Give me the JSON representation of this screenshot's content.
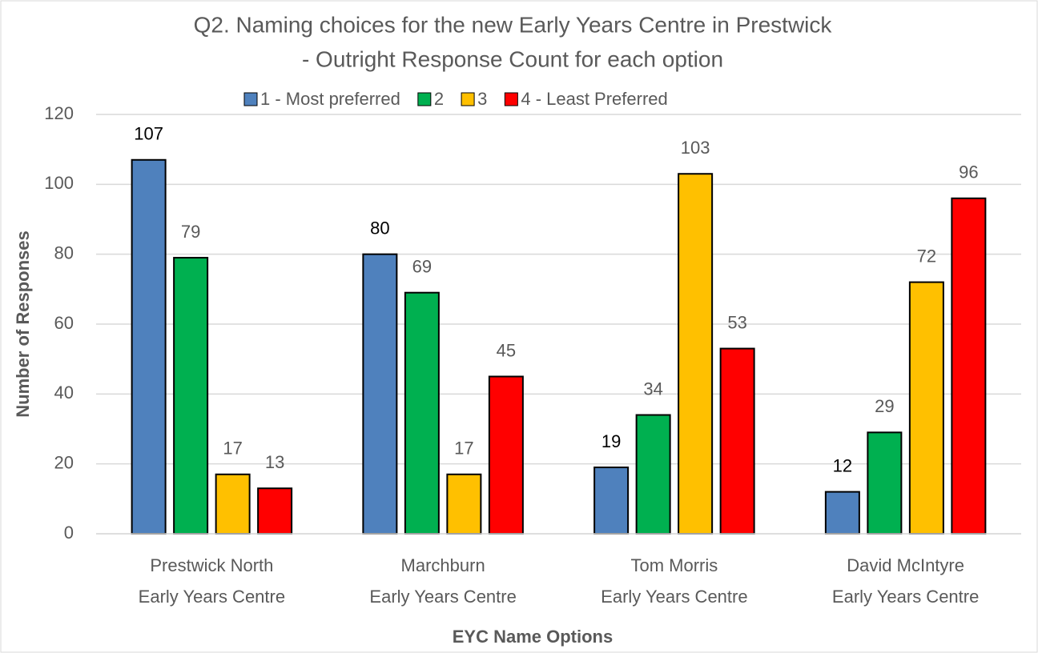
{
  "chart_data": {
    "type": "bar",
    "title": [
      "Q2. Naming choices for the new Early Years Centre in Prestwick",
      "- Outright Response Count for each option"
    ],
    "x_label": "EYC Name Options",
    "y_label": "Number of Responses",
    "categories": [
      [
        "Prestwick North",
        "Early Years Centre"
      ],
      [
        "Marchburn",
        "Early Years Centre"
      ],
      [
        "Tom Morris",
        "Early Years Centre"
      ],
      [
        "David McIntyre",
        "Early Years Centre"
      ]
    ],
    "series": [
      {
        "name": "1 - Most preferred",
        "color": "#4f81bd",
        "values": [
          107,
          80,
          19,
          12
        ]
      },
      {
        "name": "2",
        "color": "#00b050",
        "values": [
          79,
          69,
          34,
          29
        ]
      },
      {
        "name": "3",
        "color": "#ffc000",
        "values": [
          17,
          17,
          103,
          72
        ]
      },
      {
        "name": "4 - Least Preferred",
        "color": "#ff0000",
        "values": [
          13,
          45,
          53,
          96
        ]
      }
    ],
    "ylim": [
      0,
      120
    ],
    "yticks": [
      0,
      20,
      40,
      60,
      80,
      100,
      120
    ],
    "grid": true,
    "legend": "top"
  }
}
